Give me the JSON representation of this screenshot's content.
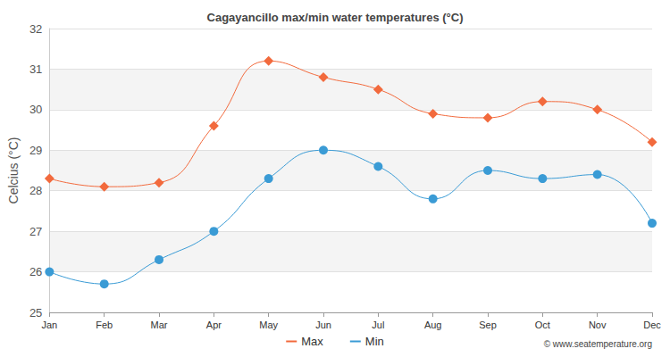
{
  "chart_data": {
    "type": "line",
    "title": "Cagayancillo max/min water temperatures (°C)",
    "y_label": "Celcius (°C)",
    "categories": [
      "Jan",
      "Feb",
      "Mar",
      "Apr",
      "May",
      "Jun",
      "Jul",
      "Aug",
      "Sep",
      "Oct",
      "Nov",
      "Dec"
    ],
    "series": [
      {
        "name": "Max",
        "color": "#f26a3d",
        "marker": "diamond",
        "values": [
          28.3,
          28.1,
          28.2,
          29.6,
          31.2,
          30.8,
          30.5,
          29.9,
          29.8,
          30.2,
          30.0,
          29.2
        ]
      },
      {
        "name": "Min",
        "color": "#3a9bd5",
        "marker": "circle",
        "values": [
          26.0,
          25.7,
          26.3,
          27.0,
          28.3,
          29.0,
          28.6,
          27.8,
          28.5,
          28.3,
          28.4,
          27.2
        ]
      }
    ],
    "ylim": [
      25,
      32
    ],
    "yticks": [
      25,
      26,
      27,
      28,
      29,
      30,
      31,
      32
    ],
    "grid": true,
    "legend": "bottom",
    "annotations": [
      "© www.seatemperature.org"
    ]
  }
}
